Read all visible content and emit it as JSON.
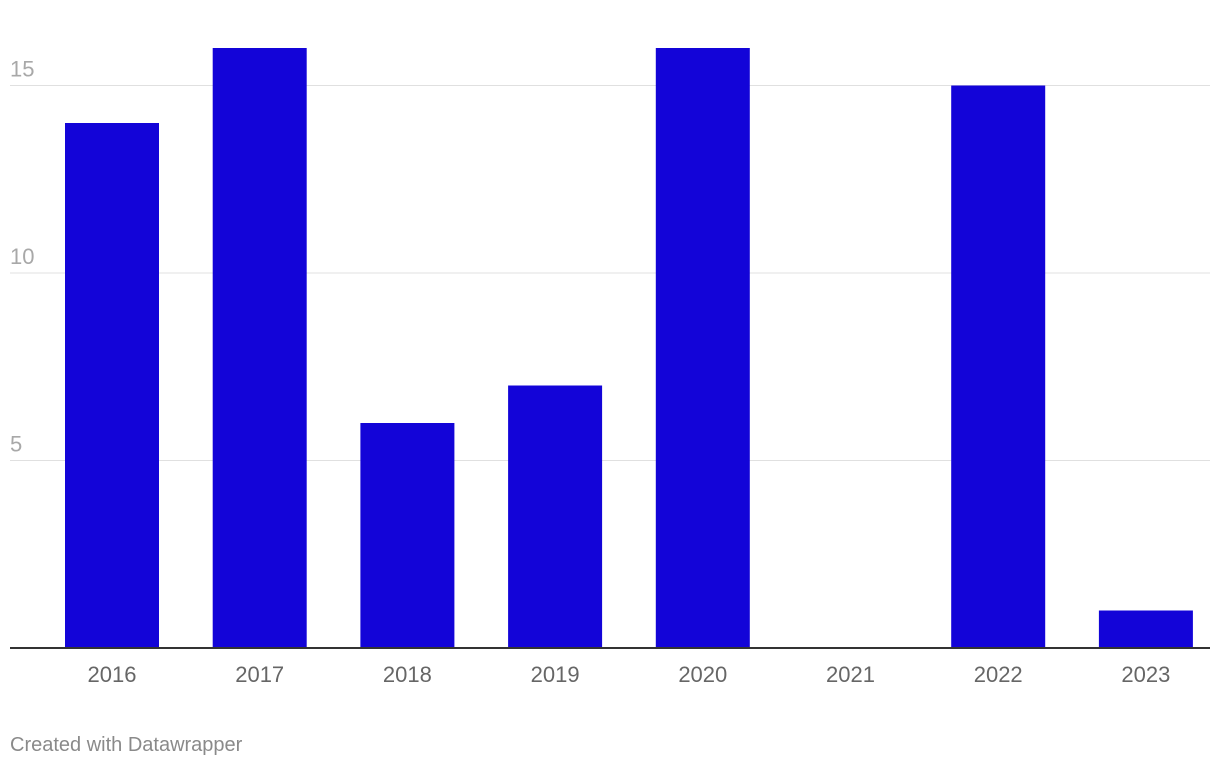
{
  "chart_data": {
    "type": "bar",
    "categories": [
      "2016",
      "2017",
      "2018",
      "2019",
      "2020",
      "2021",
      "2022",
      "2023"
    ],
    "values": [
      14,
      16,
      6,
      7,
      16,
      0,
      15,
      1
    ],
    "ylim": [
      0,
      16
    ],
    "yticks": [
      5,
      10,
      15
    ],
    "grid": true,
    "bar_color": "#1304d8"
  },
  "footer": {
    "credit": "Created with Datawrapper"
  }
}
